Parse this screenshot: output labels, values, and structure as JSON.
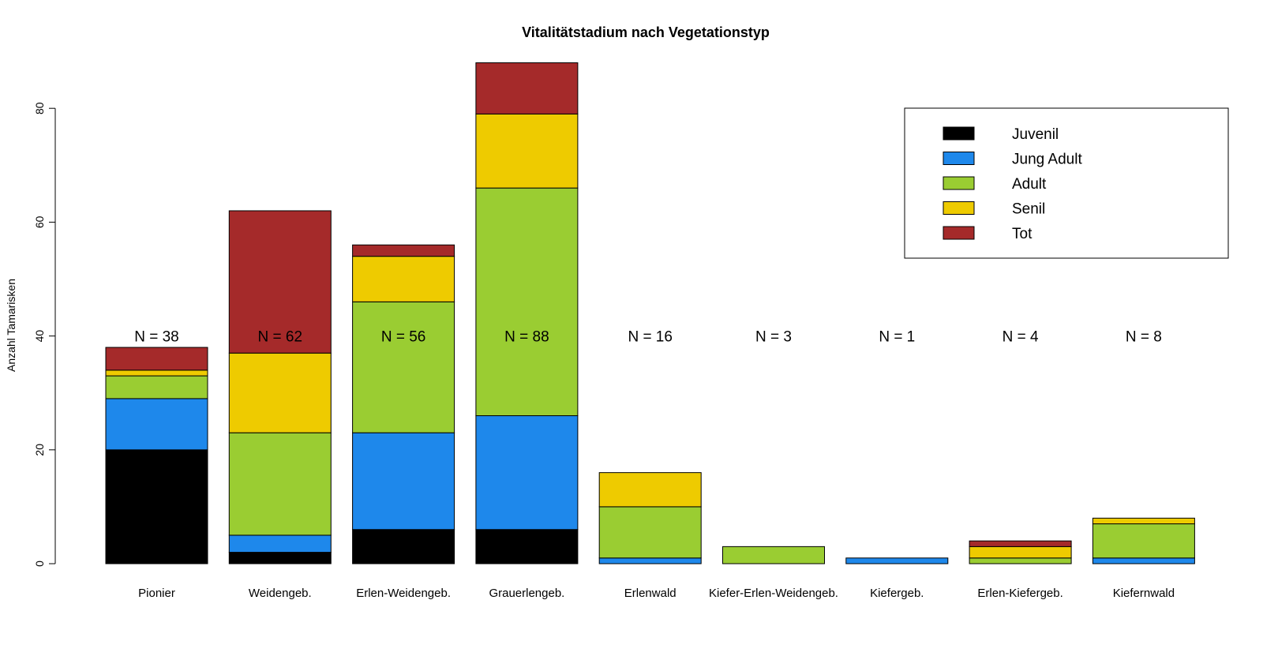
{
  "chart_data": {
    "type": "bar",
    "stacked": true,
    "title": "Vitalitätstadium nach Vegetationstyp",
    "ylabel": "Anzahl Tamarisken",
    "xlabel": "",
    "ylim": [
      0,
      90
    ],
    "yticks": [
      0,
      20,
      40,
      60,
      80
    ],
    "grid": false,
    "legend_position": "top-right",
    "categories": [
      "Pionier",
      "Weidengeb.",
      "Erlen-Weidengeb.",
      "Grauerlengeb.",
      "Erlenwald",
      "Kiefer-Erlen-Weidengeb.",
      "Kiefergeb.",
      "Erlen-Kiefergeb.",
      "Kiefernwald"
    ],
    "annotations": [
      "N = 38",
      "N = 62",
      "N = 56",
      "N = 88",
      "N = 16",
      "N = 3",
      "N = 1",
      "N = 4",
      "N = 8"
    ],
    "annotation_y": 40,
    "series": [
      {
        "name": "Juvenil",
        "color": "#000000",
        "values": [
          20,
          2,
          6,
          6,
          0,
          0,
          0,
          0,
          0
        ]
      },
      {
        "name": "Jung Adult",
        "color": "#1E88EB",
        "values": [
          9,
          3,
          17,
          20,
          1,
          0,
          1,
          0,
          1
        ]
      },
      {
        "name": "Adult",
        "color": "#9ACD32",
        "values": [
          4,
          18,
          23,
          40,
          9,
          3,
          0,
          1,
          6
        ]
      },
      {
        "name": "Senil",
        "color": "#EECB00",
        "values": [
          1,
          14,
          8,
          13,
          6,
          0,
          0,
          2,
          1
        ]
      },
      {
        "name": "Tot",
        "color": "#A52A2A",
        "values": [
          4,
          25,
          2,
          9,
          0,
          0,
          0,
          1,
          0
        ]
      }
    ]
  }
}
